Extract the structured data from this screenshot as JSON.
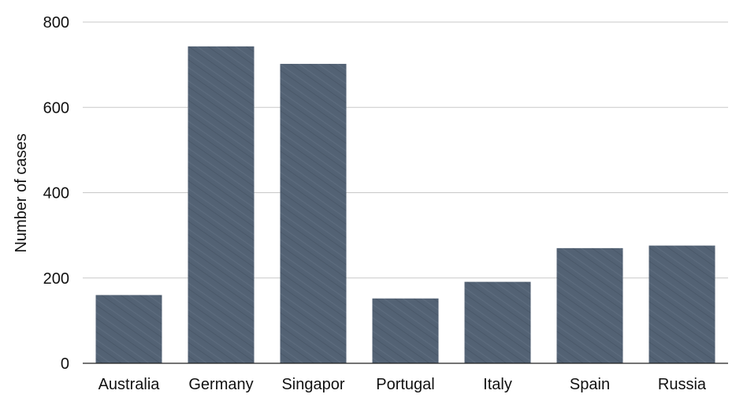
{
  "chart_data": {
    "type": "bar",
    "title": "",
    "xlabel": "",
    "ylabel": "Number of cases",
    "ylim": [
      0,
      800
    ],
    "yticks": [
      0,
      200,
      400,
      600,
      800
    ],
    "grid": true,
    "legend": "none",
    "bar_color": "#536274",
    "categories": [
      "Australia",
      "Germany",
      "Singapor",
      "Portugal",
      "Italy",
      "Spain",
      "Russia"
    ],
    "values": [
      160,
      743,
      702,
      152,
      191,
      270,
      276
    ]
  }
}
